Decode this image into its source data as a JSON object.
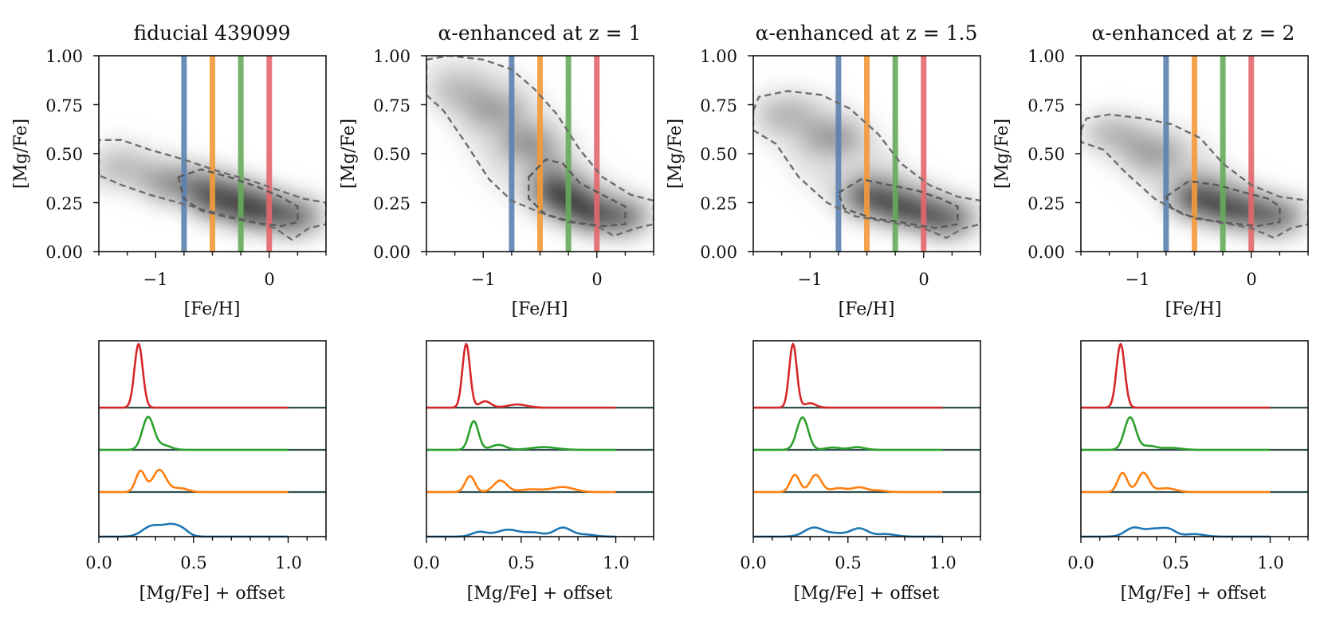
{
  "figure": {
    "panel_titles": [
      "fiducial 439099",
      "α-enhanced at z = 1",
      "α-enhanced at z = 1.5",
      "α-enhanced at z = 2"
    ],
    "top_xlabel": "[Fe/H]",
    "top_ylabel": "[Mg/Fe]",
    "bottom_xlabel": "[Mg/Fe] +  offset",
    "top_xticks": [
      -1,
      0
    ],
    "top_yticks": [
      0.0,
      0.25,
      0.5,
      0.75,
      1.0
    ],
    "top_yticklabels": [
      "0.00",
      "0.25",
      "0.50",
      "0.75",
      "1.00"
    ],
    "top_xticklabels": [
      "−1",
      "0"
    ],
    "bottom_xticks": [
      0.0,
      0.5,
      1.0
    ],
    "bottom_xticklabels": [
      "0.0",
      "0.5",
      "1.0"
    ]
  },
  "chart_data": [
    {
      "type": "heatmap",
      "title": "fiducial 439099",
      "xlabel": "[Fe/H]",
      "ylabel": "[Mg/Fe]",
      "xlim": [
        -1.5,
        0.5
      ],
      "ylim": [
        0.0,
        1.0
      ],
      "grid": false,
      "vertical_lines": [
        {
          "x": -0.75,
          "color": "#5b82b0"
        },
        {
          "x": -0.5,
          "color": "#f39a3a"
        },
        {
          "x": -0.25,
          "color": "#65ac5a"
        },
        {
          "x": 0.0,
          "color": "#e4676b"
        }
      ],
      "density_blobs": [
        {
          "x": -1.3,
          "y": 0.42,
          "weight": 0.25
        },
        {
          "x": -0.85,
          "y": 0.35,
          "weight": 0.55
        },
        {
          "x": -0.45,
          "y": 0.27,
          "weight": 0.8
        },
        {
          "x": -0.1,
          "y": 0.22,
          "weight": 1.0
        },
        {
          "x": 0.2,
          "y": 0.18,
          "weight": 0.75
        }
      ],
      "outer_contour": [
        [
          -1.5,
          0.39
        ],
        [
          -1.5,
          0.57
        ],
        [
          -1.3,
          0.57
        ],
        [
          -1.05,
          0.52
        ],
        [
          -0.75,
          0.47
        ],
        [
          -0.45,
          0.41
        ],
        [
          -0.15,
          0.36
        ],
        [
          0.1,
          0.31
        ],
        [
          0.3,
          0.27
        ],
        [
          0.5,
          0.25
        ],
        [
          0.5,
          0.14
        ],
        [
          0.35,
          0.12
        ],
        [
          0.2,
          0.06
        ],
        [
          0.05,
          0.12
        ],
        [
          -0.25,
          0.17
        ],
        [
          -0.55,
          0.21
        ],
        [
          -0.8,
          0.25
        ],
        [
          -1.05,
          0.29
        ],
        [
          -1.3,
          0.34
        ]
      ],
      "inner_contour": [
        [
          -0.8,
          0.38
        ],
        [
          -0.6,
          0.42
        ],
        [
          -0.35,
          0.38
        ],
        [
          -0.1,
          0.33
        ],
        [
          0.1,
          0.28
        ],
        [
          0.25,
          0.23
        ],
        [
          0.25,
          0.15
        ],
        [
          0.1,
          0.13
        ],
        [
          -0.15,
          0.15
        ],
        [
          -0.4,
          0.18
        ],
        [
          -0.6,
          0.21
        ],
        [
          -0.75,
          0.27
        ]
      ]
    },
    {
      "type": "heatmap",
      "title": "α-enhanced at z = 1",
      "xlabel": "[Fe/H]",
      "ylabel": "[Mg/Fe]",
      "xlim": [
        -1.5,
        0.5
      ],
      "ylim": [
        0.0,
        1.0
      ],
      "grid": false,
      "vertical_lines": [
        {
          "x": -0.75,
          "color": "#5b82b0"
        },
        {
          "x": -0.5,
          "color": "#f39a3a"
        },
        {
          "x": -0.25,
          "color": "#65ac5a"
        },
        {
          "x": 0.0,
          "color": "#e4676b"
        }
      ],
      "density_blobs": [
        {
          "x": -1.2,
          "y": 0.82,
          "weight": 0.25
        },
        {
          "x": -0.9,
          "y": 0.72,
          "weight": 0.45
        },
        {
          "x": -0.6,
          "y": 0.55,
          "weight": 0.55
        },
        {
          "x": -0.3,
          "y": 0.3,
          "weight": 0.85
        },
        {
          "x": 0.0,
          "y": 0.2,
          "weight": 1.0
        },
        {
          "x": 0.2,
          "y": 0.18,
          "weight": 0.7
        }
      ],
      "outer_contour": [
        [
          -1.5,
          0.98
        ],
        [
          -1.3,
          1.0
        ],
        [
          -1.0,
          0.98
        ],
        [
          -0.75,
          0.93
        ],
        [
          -0.55,
          0.83
        ],
        [
          -0.35,
          0.7
        ],
        [
          -0.15,
          0.52
        ],
        [
          0.05,
          0.38
        ],
        [
          0.3,
          0.29
        ],
        [
          0.5,
          0.26
        ],
        [
          0.5,
          0.14
        ],
        [
          0.35,
          0.12
        ],
        [
          0.15,
          0.08
        ],
        [
          0.0,
          0.13
        ],
        [
          -0.25,
          0.15
        ],
        [
          -0.5,
          0.2
        ],
        [
          -0.75,
          0.26
        ],
        [
          -0.95,
          0.37
        ],
        [
          -1.15,
          0.55
        ],
        [
          -1.35,
          0.72
        ],
        [
          -1.5,
          0.8
        ]
      ],
      "inner_contour": [
        [
          -0.6,
          0.38
        ],
        [
          -0.45,
          0.47
        ],
        [
          -0.3,
          0.45
        ],
        [
          -0.15,
          0.35
        ],
        [
          0.05,
          0.29
        ],
        [
          0.25,
          0.23
        ],
        [
          0.25,
          0.14
        ],
        [
          0.05,
          0.13
        ],
        [
          -0.2,
          0.15
        ],
        [
          -0.45,
          0.19
        ],
        [
          -0.6,
          0.27
        ]
      ]
    },
    {
      "type": "heatmap",
      "title": "α-enhanced at z = 1.5",
      "xlabel": "[Fe/H]",
      "ylabel": "[Mg/Fe]",
      "xlim": [
        -1.5,
        0.5
      ],
      "ylim": [
        0.0,
        1.0
      ],
      "grid": false,
      "vertical_lines": [
        {
          "x": -0.75,
          "color": "#5b82b0"
        },
        {
          "x": -0.5,
          "color": "#f39a3a"
        },
        {
          "x": -0.25,
          "color": "#65ac5a"
        },
        {
          "x": 0.0,
          "color": "#e4676b"
        }
      ],
      "density_blobs": [
        {
          "x": -1.2,
          "y": 0.7,
          "weight": 0.3
        },
        {
          "x": -0.8,
          "y": 0.58,
          "weight": 0.5
        },
        {
          "x": -0.45,
          "y": 0.3,
          "weight": 0.8
        },
        {
          "x": -0.1,
          "y": 0.22,
          "weight": 1.0
        },
        {
          "x": 0.2,
          "y": 0.17,
          "weight": 0.75
        }
      ],
      "outer_contour": [
        [
          -1.5,
          0.72
        ],
        [
          -1.45,
          0.79
        ],
        [
          -1.2,
          0.82
        ],
        [
          -0.9,
          0.8
        ],
        [
          -0.65,
          0.73
        ],
        [
          -0.4,
          0.6
        ],
        [
          -0.2,
          0.45
        ],
        [
          0.05,
          0.34
        ],
        [
          0.3,
          0.28
        ],
        [
          0.5,
          0.26
        ],
        [
          0.5,
          0.14
        ],
        [
          0.35,
          0.12
        ],
        [
          0.2,
          0.07
        ],
        [
          0.0,
          0.12
        ],
        [
          -0.3,
          0.15
        ],
        [
          -0.6,
          0.18
        ],
        [
          -0.85,
          0.25
        ],
        [
          -1.1,
          0.38
        ],
        [
          -1.3,
          0.55
        ],
        [
          -1.5,
          0.62
        ]
      ],
      "inner_contour": [
        [
          -0.75,
          0.3
        ],
        [
          -0.55,
          0.37
        ],
        [
          -0.3,
          0.34
        ],
        [
          -0.05,
          0.31
        ],
        [
          0.15,
          0.27
        ],
        [
          0.3,
          0.23
        ],
        [
          0.3,
          0.14
        ],
        [
          0.1,
          0.12
        ],
        [
          -0.2,
          0.15
        ],
        [
          -0.45,
          0.17
        ],
        [
          -0.7,
          0.22
        ]
      ]
    },
    {
      "type": "heatmap",
      "title": "α-enhanced at z = 2",
      "xlabel": "[Fe/H]",
      "ylabel": "[Mg/Fe]",
      "xlim": [
        -1.5,
        0.5
      ],
      "ylim": [
        0.0,
        1.0
      ],
      "grid": false,
      "vertical_lines": [
        {
          "x": -0.75,
          "color": "#5b82b0"
        },
        {
          "x": -0.5,
          "color": "#f39a3a"
        },
        {
          "x": -0.25,
          "color": "#65ac5a"
        },
        {
          "x": 0.0,
          "color": "#e4676b"
        }
      ],
      "density_blobs": [
        {
          "x": -1.2,
          "y": 0.6,
          "weight": 0.3
        },
        {
          "x": -0.85,
          "y": 0.5,
          "weight": 0.45
        },
        {
          "x": -0.45,
          "y": 0.3,
          "weight": 0.8
        },
        {
          "x": -0.1,
          "y": 0.22,
          "weight": 1.0
        },
        {
          "x": 0.2,
          "y": 0.18,
          "weight": 0.7
        }
      ],
      "outer_contour": [
        [
          -1.5,
          0.62
        ],
        [
          -1.45,
          0.68
        ],
        [
          -1.25,
          0.7
        ],
        [
          -0.95,
          0.68
        ],
        [
          -0.7,
          0.65
        ],
        [
          -0.45,
          0.58
        ],
        [
          -0.25,
          0.45
        ],
        [
          0.0,
          0.34
        ],
        [
          0.25,
          0.28
        ],
        [
          0.5,
          0.26
        ],
        [
          0.5,
          0.14
        ],
        [
          0.35,
          0.12
        ],
        [
          0.2,
          0.07
        ],
        [
          0.0,
          0.12
        ],
        [
          -0.3,
          0.15
        ],
        [
          -0.6,
          0.19
        ],
        [
          -0.85,
          0.27
        ],
        [
          -1.1,
          0.4
        ],
        [
          -1.3,
          0.52
        ],
        [
          -1.5,
          0.56
        ]
      ],
      "inner_contour": [
        [
          -0.75,
          0.28
        ],
        [
          -0.55,
          0.36
        ],
        [
          -0.3,
          0.34
        ],
        [
          -0.05,
          0.3
        ],
        [
          0.15,
          0.27
        ],
        [
          0.25,
          0.23
        ],
        [
          0.25,
          0.15
        ],
        [
          0.05,
          0.13
        ],
        [
          -0.25,
          0.15
        ],
        [
          -0.5,
          0.17
        ],
        [
          -0.7,
          0.22
        ]
      ]
    },
    {
      "type": "line",
      "xlabel": "[Mg/Fe] +  offset",
      "xlim": [
        0.0,
        1.2
      ],
      "series": [
        {
          "color": "#d62728",
          "peaks": [
            [
              0.21,
              1.0,
              0.022
            ]
          ]
        },
        {
          "color": "#2ca02c",
          "peaks": [
            [
              0.26,
              0.85,
              0.03
            ],
            [
              0.34,
              0.12,
              0.04
            ]
          ]
        },
        {
          "color": "#ff7f0e",
          "peaks": [
            [
              0.22,
              0.55,
              0.025
            ],
            [
              0.32,
              0.58,
              0.035
            ],
            [
              0.43,
              0.1,
              0.04
            ]
          ]
        },
        {
          "color": "#1f77b4",
          "peaks": [
            [
              0.28,
              0.4,
              0.05
            ],
            [
              0.39,
              0.45,
              0.05
            ],
            [
              0.45,
              0.1,
              0.03
            ]
          ]
        }
      ]
    },
    {
      "type": "line",
      "xlabel": "[Mg/Fe] +  offset",
      "xlim": [
        0.0,
        1.2
      ],
      "series": [
        {
          "color": "#d62728",
          "peaks": [
            [
              0.21,
              1.0,
              0.02
            ],
            [
              0.31,
              0.1,
              0.03
            ],
            [
              0.48,
              0.05,
              0.05
            ]
          ]
        },
        {
          "color": "#2ca02c",
          "peaks": [
            [
              0.25,
              0.75,
              0.025
            ],
            [
              0.38,
              0.13,
              0.04
            ],
            [
              0.62,
              0.07,
              0.07
            ]
          ]
        },
        {
          "color": "#ff7f0e",
          "peaks": [
            [
              0.23,
              0.42,
              0.025
            ],
            [
              0.39,
              0.3,
              0.035
            ],
            [
              0.55,
              0.07,
              0.06
            ],
            [
              0.72,
              0.13,
              0.06
            ]
          ]
        },
        {
          "color": "#1f77b4",
          "peaks": [
            [
              0.28,
              0.18,
              0.04
            ],
            [
              0.43,
              0.27,
              0.06
            ],
            [
              0.57,
              0.15,
              0.05
            ],
            [
              0.72,
              0.35,
              0.045
            ],
            [
              0.84,
              0.08,
              0.05
            ]
          ]
        }
      ]
    },
    {
      "type": "line",
      "xlabel": "[Mg/Fe] +  offset",
      "xlim": [
        0.0,
        1.2
      ],
      "series": [
        {
          "color": "#d62728",
          "peaks": [
            [
              0.21,
              1.0,
              0.02
            ],
            [
              0.3,
              0.07,
              0.03
            ]
          ]
        },
        {
          "color": "#2ca02c",
          "peaks": [
            [
              0.26,
              0.85,
              0.03
            ],
            [
              0.42,
              0.06,
              0.04
            ],
            [
              0.55,
              0.07,
              0.04
            ]
          ]
        },
        {
          "color": "#ff7f0e",
          "peaks": [
            [
              0.22,
              0.45,
              0.025
            ],
            [
              0.33,
              0.45,
              0.03
            ],
            [
              0.45,
              0.1,
              0.04
            ],
            [
              0.56,
              0.12,
              0.04
            ],
            [
              0.66,
              0.04,
              0.04
            ]
          ]
        },
        {
          "color": "#1f77b4",
          "peaks": [
            [
              0.32,
              0.35,
              0.05
            ],
            [
              0.44,
              0.12,
              0.05
            ],
            [
              0.56,
              0.32,
              0.045
            ],
            [
              0.7,
              0.1,
              0.05
            ]
          ]
        }
      ]
    },
    {
      "type": "line",
      "xlabel": "[Mg/Fe] +  offset",
      "xlim": [
        0.0,
        1.2
      ],
      "series": [
        {
          "color": "#d62728",
          "peaks": [
            [
              0.21,
              1.0,
              0.022
            ]
          ]
        },
        {
          "color": "#2ca02c",
          "peaks": [
            [
              0.26,
              0.85,
              0.03
            ],
            [
              0.36,
              0.1,
              0.04
            ],
            [
              0.48,
              0.05,
              0.05
            ]
          ]
        },
        {
          "color": "#ff7f0e",
          "peaks": [
            [
              0.22,
              0.5,
              0.025
            ],
            [
              0.33,
              0.5,
              0.03
            ],
            [
              0.45,
              0.1,
              0.05
            ]
          ]
        },
        {
          "color": "#1f77b4",
          "peaks": [
            [
              0.28,
              0.35,
              0.045
            ],
            [
              0.38,
              0.25,
              0.04
            ],
            [
              0.46,
              0.3,
              0.04
            ],
            [
              0.6,
              0.1,
              0.05
            ]
          ]
        }
      ]
    }
  ]
}
